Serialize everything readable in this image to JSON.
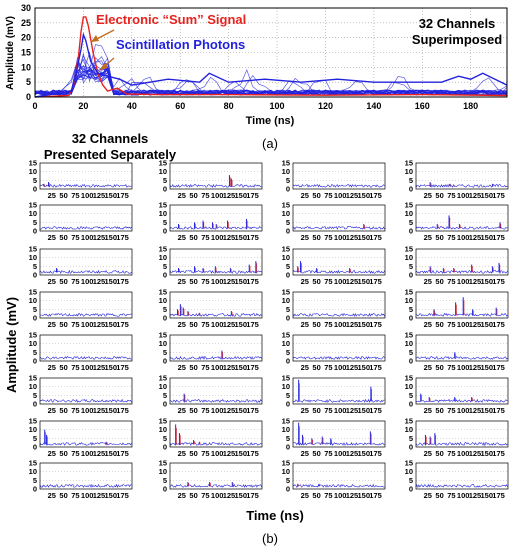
{
  "chart_data": [
    {
      "type": "line",
      "panel_label": "(a)",
      "xlabel": "Time (ns)",
      "ylabel": "Amplitude (mV)",
      "xlim": [
        0,
        195
      ],
      "ylim": [
        0,
        30
      ],
      "xticks": [
        0,
        20,
        40,
        60,
        80,
        100,
        120,
        140,
        160,
        180
      ],
      "yticks": [
        0,
        5,
        10,
        15,
        20,
        25,
        30
      ],
      "grid": true,
      "annotations": {
        "sum_label": "Electronic “Sum” Signal",
        "photon_label": "Scintillation Photons",
        "overlay_label_line1": "32 Channels",
        "overlay_label_line2": "Superimposed"
      },
      "series": [
        {
          "name": "Electronic “Sum” Signal",
          "color": "#e8231f",
          "x": [
            0,
            14,
            16,
            18,
            19,
            20,
            21,
            22,
            24,
            26,
            28,
            30,
            34,
            38,
            50,
            80,
            120,
            160,
            195
          ],
          "y": [
            0,
            0.5,
            4,
            14,
            22,
            27,
            27,
            24,
            15,
            8,
            4,
            2,
            3,
            1,
            0.8,
            0.8,
            0.6,
            0.8,
            0.5
          ]
        },
        {
          "name": "Scintillation Photons",
          "color": "#2222dd",
          "x": [
            0,
            15,
            17,
            19,
            20,
            21,
            23,
            26,
            30,
            35,
            40,
            55,
            68,
            72,
            80,
            95,
            110,
            125,
            140,
            155,
            168,
            175,
            180,
            185,
            195
          ],
          "y": [
            0,
            2,
            8,
            16,
            21,
            19,
            12,
            8,
            7,
            6,
            4,
            6,
            5,
            8,
            5,
            6,
            5,
            6,
            5,
            5,
            5,
            7,
            6,
            8,
            4
          ]
        }
      ]
    },
    {
      "type": "line",
      "panel_label": "(b)",
      "title_line1": "32 Channels",
      "title_line2": "Presented Separately",
      "xlabel": "Time (ns)",
      "ylabel": "Amplitude (mV)",
      "xlim": [
        0,
        195
      ],
      "ylim": [
        0,
        15
      ],
      "yticks": [
        0,
        5,
        10,
        15
      ],
      "xticks": [
        25,
        50,
        75,
        100,
        125,
        150,
        175
      ],
      "channels": [
        {
          "pulses": [
            [
              8,
              3
            ],
            [
              18,
              4
            ]
          ]
        },
        {
          "pulses": [
            [
              126,
              8
            ],
            [
              130,
              6
            ]
          ]
        },
        {
          "pulses": []
        },
        {
          "pulses": [
            [
              30,
              4
            ],
            [
              72,
              3
            ],
            [
              162,
              3
            ]
          ]
        },
        {
          "pulses": []
        },
        {
          "pulses": [
            [
              18,
              4
            ],
            [
              52,
              5
            ],
            [
              70,
              6
            ],
            [
              90,
              5
            ],
            [
              98,
              4
            ],
            [
              122,
              6
            ],
            [
              162,
              7
            ]
          ]
        },
        {
          "pulses": [
            [
              150,
              4
            ]
          ]
        },
        {
          "pulses": [
            [
              45,
              4
            ],
            [
              70,
              9
            ],
            [
              92,
              4
            ],
            [
              178,
              5
            ]
          ]
        },
        {
          "pulses": [
            [
              35,
              4
            ]
          ]
        },
        {
          "pulses": [
            [
              18,
              4
            ],
            [
              52,
              5
            ],
            [
              70,
              4
            ],
            [
              96,
              5
            ],
            [
              128,
              4
            ],
            [
              168,
              6
            ],
            [
              182,
              8
            ]
          ]
        },
        {
          "pulses": [
            [
              10,
              5
            ],
            [
              16,
              8
            ],
            [
              50,
              4
            ],
            [
              120,
              4
            ]
          ]
        },
        {
          "pulses": [
            [
              30,
              5
            ],
            [
              58,
              4
            ],
            [
              80,
              4
            ],
            [
              118,
              6
            ],
            [
              162,
              5
            ],
            [
              176,
              7
            ]
          ]
        },
        {
          "pulses": []
        },
        {
          "pulses": [
            [
              16,
              5
            ],
            [
              22,
              8
            ],
            [
              28,
              6
            ],
            [
              38,
              4
            ],
            [
              62,
              3
            ],
            [
              130,
              4
            ]
          ]
        },
        {
          "pulses": []
        },
        {
          "pulses": [
            [
              38,
              5
            ],
            [
              84,
              9
            ],
            [
              100,
              12
            ],
            [
              120,
              5
            ],
            [
              170,
              6
            ]
          ]
        },
        {
          "pulses": []
        },
        {
          "pulses": [
            [
              110,
              6
            ]
          ]
        },
        {
          "pulses": []
        },
        {
          "pulses": [
            [
              82,
              5
            ]
          ]
        },
        {
          "pulses": []
        },
        {
          "pulses": [
            [
              30,
              6
            ]
          ]
        },
        {
          "pulses": [
            [
              12,
              14
            ],
            [
              165,
              10
            ]
          ]
        },
        {
          "pulses": [
            [
              10,
              6
            ],
            [
              28,
              4
            ],
            [
              82,
              4
            ],
            [
              118,
              4
            ]
          ]
        },
        {
          "pulses": [
            [
              10,
              10
            ],
            [
              14,
              7
            ],
            [
              140,
              3
            ]
          ]
        },
        {
          "pulses": [
            [
              12,
              13
            ],
            [
              20,
              8
            ],
            [
              50,
              4
            ],
            [
              62,
              3
            ]
          ]
        },
        {
          "pulses": [
            [
              12,
              14
            ],
            [
              20,
              7
            ],
            [
              40,
              5
            ],
            [
              62,
              6
            ],
            [
              80,
              5
            ],
            [
              164,
              9
            ]
          ]
        },
        {
          "pulses": [
            [
              20,
              7
            ],
            [
              30,
              6
            ],
            [
              40,
              8
            ]
          ]
        },
        {
          "pulses": [
            [
              5,
              2
            ]
          ]
        },
        {
          "pulses": [
            [
              38,
              4
            ],
            [
              84,
              4
            ],
            [
              132,
              4
            ]
          ]
        },
        {
          "pulses": [
            [
              10,
              3
            ],
            [
              55,
              3
            ]
          ]
        },
        {
          "pulses": []
        }
      ]
    }
  ]
}
